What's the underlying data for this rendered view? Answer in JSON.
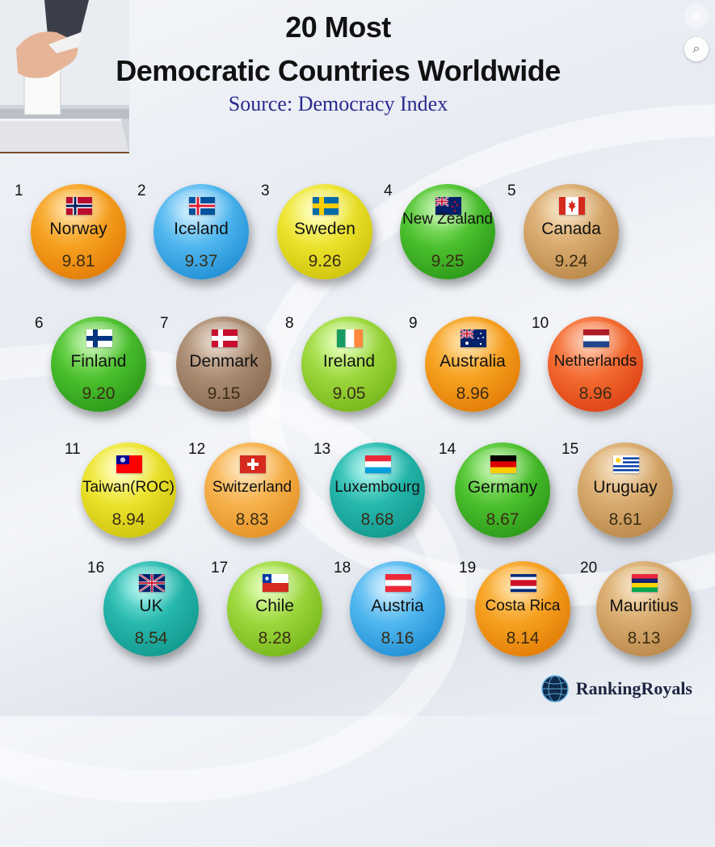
{
  "header": {
    "title_line1": "20 Most",
    "title_line2": "Democratic Countries Worldwide",
    "subtitle": "Source: Democracy Index"
  },
  "controls": {
    "close_label": "×",
    "lens_label": "⌕"
  },
  "brand": {
    "name": "RankingRoyals"
  },
  "countries": [
    {
      "rank": "1",
      "name": "Norway",
      "score": "9.81",
      "flag": "norway-flag"
    },
    {
      "rank": "2",
      "name": "Iceland",
      "score": "9.37",
      "flag": "iceland-flag"
    },
    {
      "rank": "3",
      "name": "Sweden",
      "score": "9.26",
      "flag": "sweden-flag"
    },
    {
      "rank": "4",
      "name": "New Zealand",
      "score": "9.25",
      "flag": "new-zealand-flag"
    },
    {
      "rank": "5",
      "name": "Canada",
      "score": "9.24",
      "flag": "canada-flag"
    },
    {
      "rank": "6",
      "name": "Finland",
      "score": "9.20",
      "flag": "finland-flag"
    },
    {
      "rank": "7",
      "name": "Denmark",
      "score": "9.15",
      "flag": "denmark-flag"
    },
    {
      "rank": "8",
      "name": "Ireland",
      "score": "9.05",
      "flag": "ireland-flag"
    },
    {
      "rank": "9",
      "name": "Australia",
      "score": "8.96",
      "flag": "australia-flag"
    },
    {
      "rank": "10",
      "name": "Netherlands",
      "score": "8.96",
      "flag": "netherlands-flag"
    },
    {
      "rank": "11",
      "name": "Taiwan(ROC)",
      "score": "8.94",
      "flag": "taiwan-flag"
    },
    {
      "rank": "12",
      "name": "Switzerland",
      "score": "8.83",
      "flag": "switzerland-flag"
    },
    {
      "rank": "13",
      "name": "Luxembourg",
      "score": "8.68",
      "flag": "luxembourg-flag"
    },
    {
      "rank": "14",
      "name": "Germany",
      "score": "8.67",
      "flag": "germany-flag"
    },
    {
      "rank": "15",
      "name": "Uruguay",
      "score": "8.61",
      "flag": "uruguay-flag"
    },
    {
      "rank": "16",
      "name": "UK",
      "score": "8.54",
      "flag": "uk-flag"
    },
    {
      "rank": "17",
      "name": "Chile",
      "score": "8.28",
      "flag": "chile-flag"
    },
    {
      "rank": "18",
      "name": "Austria",
      "score": "8.16",
      "flag": "austria-flag"
    },
    {
      "rank": "19",
      "name": "Costa Rica",
      "score": "8.14",
      "flag": "costa-rica-flag"
    },
    {
      "rank": "20",
      "name": "Mauritius",
      "score": "8.13",
      "flag": "mauritius-flag"
    }
  ]
}
